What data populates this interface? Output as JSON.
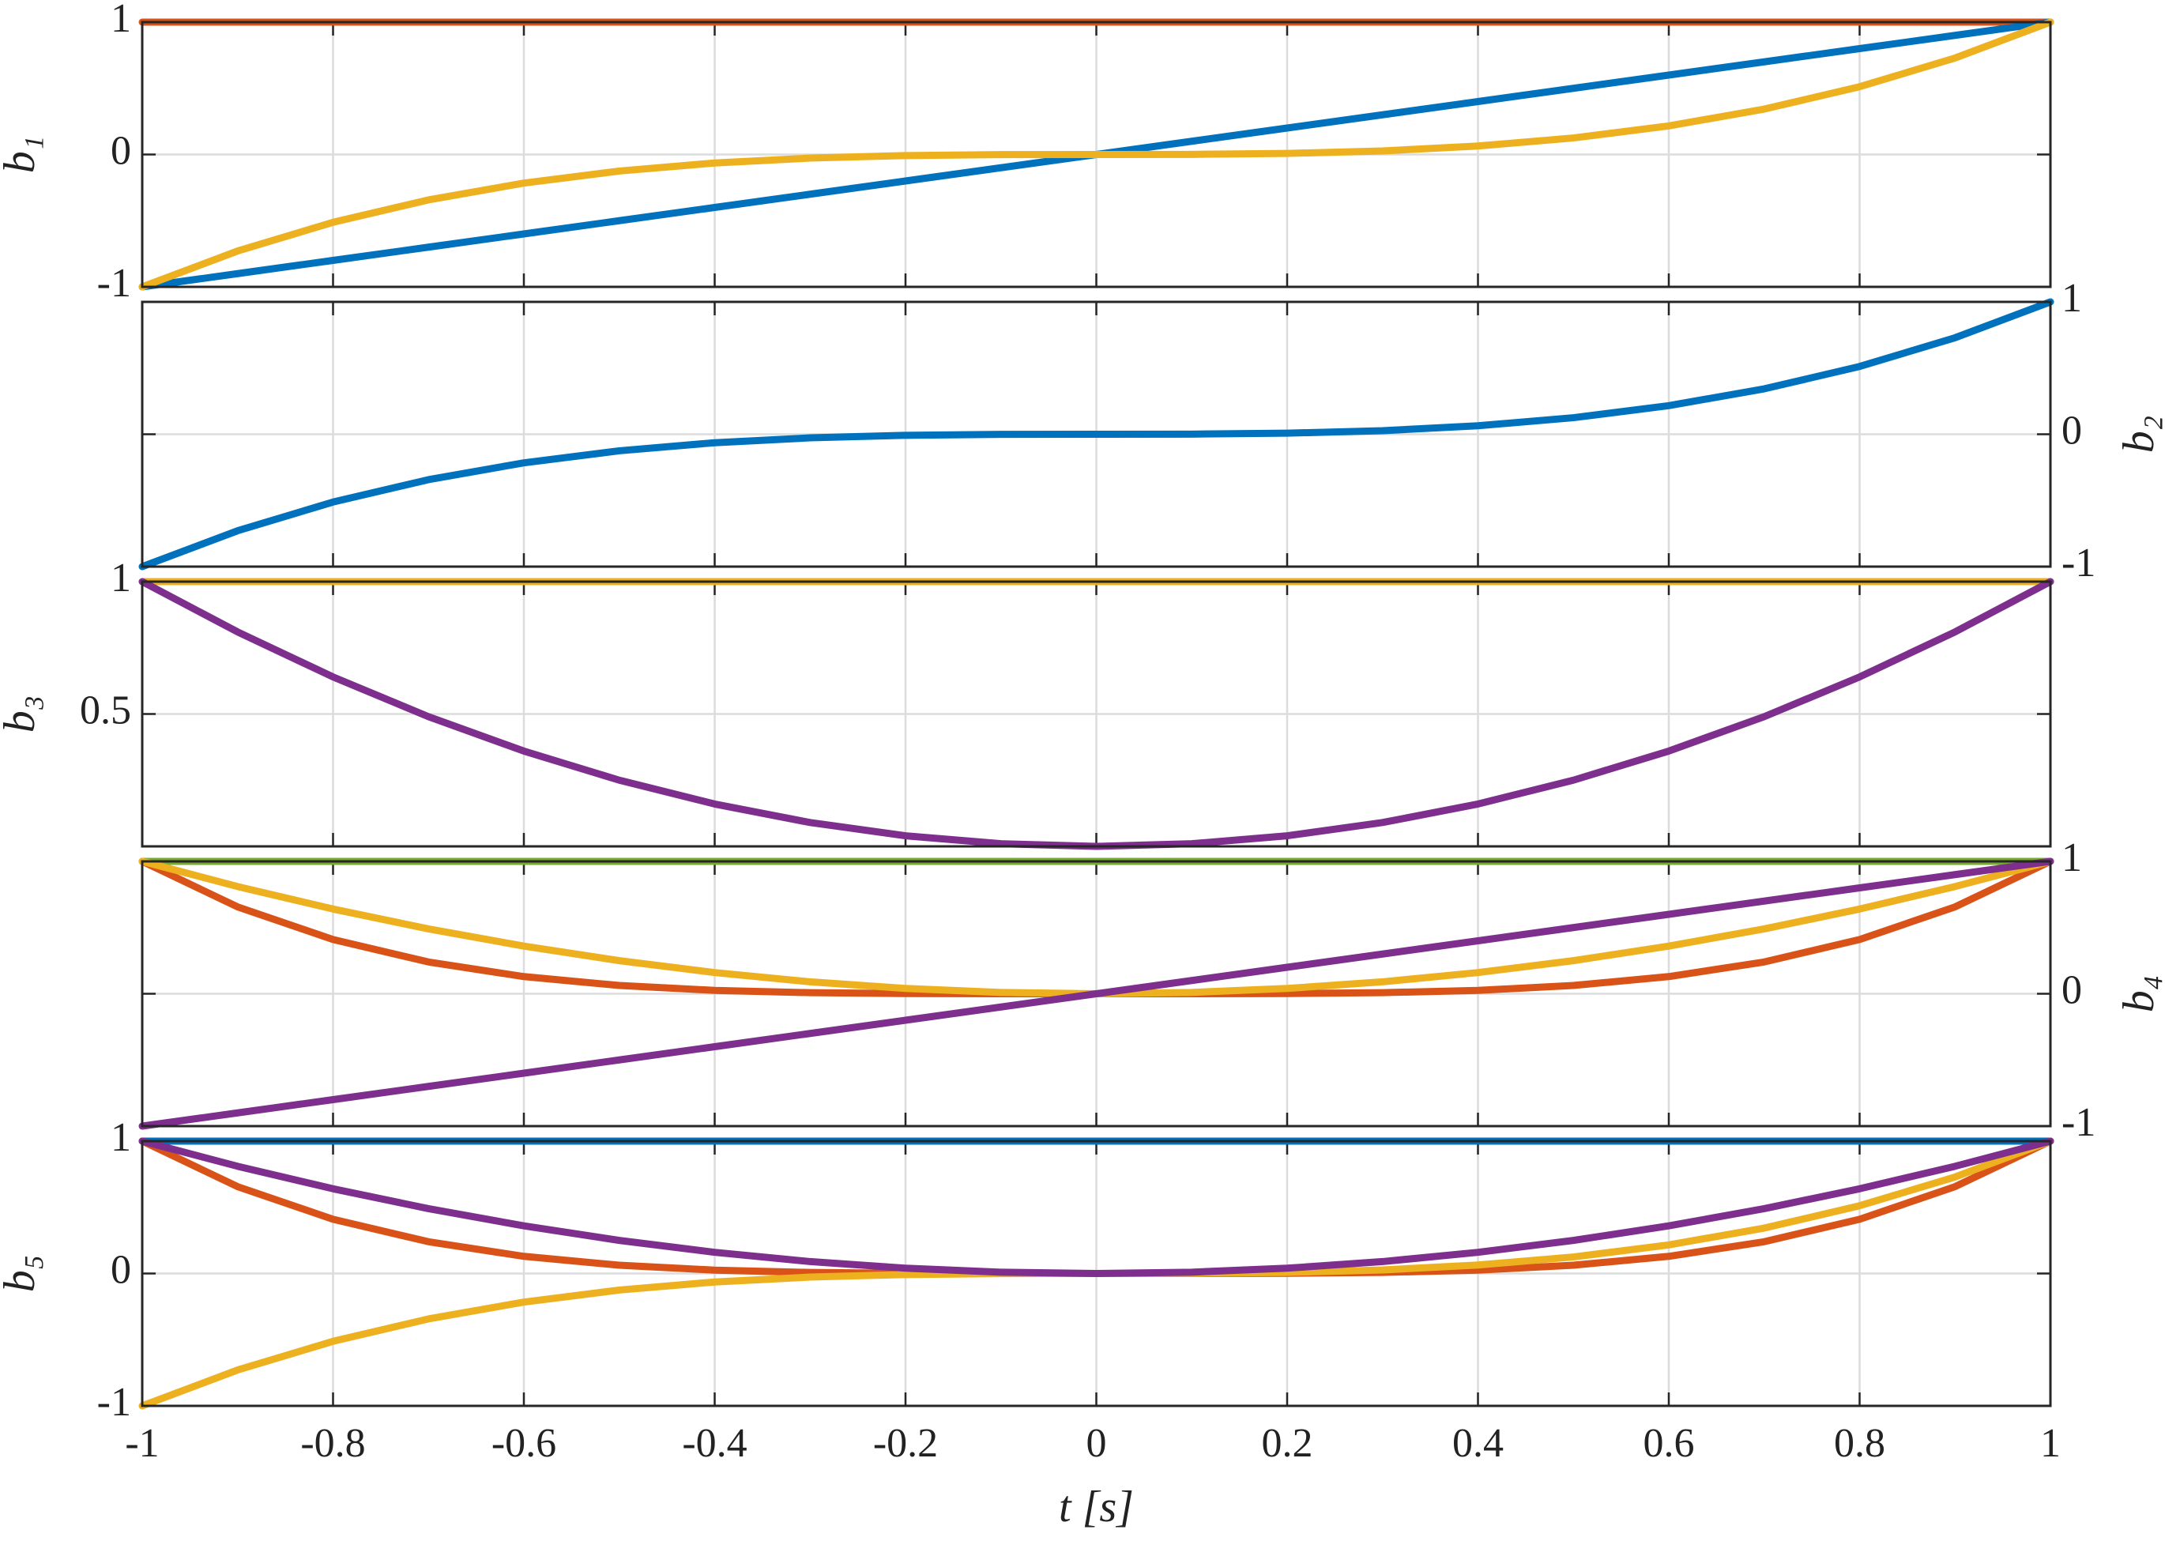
{
  "chart_data": [
    {
      "type": "line",
      "ylabel": "b₁",
      "yaxis": "left",
      "grid": true,
      "xlim": [
        -1,
        1
      ],
      "xticks": [
        -1,
        -0.8,
        -0.6,
        -0.4,
        -0.2,
        0,
        0.2,
        0.4,
        0.6,
        0.8,
        1
      ],
      "ylim": [
        -1,
        1
      ],
      "yticks": [
        -1,
        0,
        1
      ],
      "x": [
        -1,
        -0.9,
        -0.8,
        -0.7,
        -0.6,
        -0.5,
        -0.4,
        -0.3,
        -0.2,
        -0.1,
        0,
        0.1,
        0.2,
        0.3,
        0.4,
        0.5,
        0.6,
        0.7,
        0.8,
        0.9,
        1
      ],
      "series": [
        {
          "color": "#D95319",
          "values": [
            1,
            1,
            1,
            1,
            1,
            1,
            1,
            1,
            1,
            1,
            1,
            1,
            1,
            1,
            1,
            1,
            1,
            1,
            1,
            1,
            1
          ]
        },
        {
          "color": "#0072BD",
          "values": [
            -1,
            -0.9,
            -0.8,
            -0.7,
            -0.6,
            -0.5,
            -0.4,
            -0.3,
            -0.2,
            -0.1,
            0,
            0.1,
            0.2,
            0.3,
            0.4,
            0.5,
            0.6,
            0.7,
            0.8,
            0.9,
            1
          ]
        },
        {
          "color": "#EDB120",
          "values": [
            -1,
            -0.729,
            -0.512,
            -0.343,
            -0.216,
            -0.125,
            -0.064,
            -0.027,
            -0.008,
            -0.001,
            0,
            0.001,
            0.008,
            0.027,
            0.064,
            0.125,
            0.216,
            0.343,
            0.512,
            0.729,
            1
          ]
        }
      ]
    },
    {
      "type": "line",
      "ylabel": "b₂",
      "yaxis": "right",
      "grid": true,
      "xlim": [
        -1,
        1
      ],
      "xticks": [
        -1,
        -0.8,
        -0.6,
        -0.4,
        -0.2,
        0,
        0.2,
        0.4,
        0.6,
        0.8,
        1
      ],
      "ylim": [
        -1,
        1
      ],
      "yticks": [
        -1,
        0,
        1
      ],
      "x": [
        -1,
        -0.9,
        -0.8,
        -0.7,
        -0.6,
        -0.5,
        -0.4,
        -0.3,
        -0.2,
        -0.1,
        0,
        0.1,
        0.2,
        0.3,
        0.4,
        0.5,
        0.6,
        0.7,
        0.8,
        0.9,
        1
      ],
      "series": [
        {
          "color": "#0072BD",
          "values": [
            -1,
            -0.729,
            -0.512,
            -0.343,
            -0.216,
            -0.125,
            -0.064,
            -0.027,
            -0.008,
            -0.001,
            0,
            0.001,
            0.008,
            0.027,
            0.064,
            0.125,
            0.216,
            0.343,
            0.512,
            0.729,
            1
          ]
        }
      ]
    },
    {
      "type": "line",
      "ylabel": "b₃",
      "yaxis": "left",
      "grid": true,
      "xlim": [
        -1,
        1
      ],
      "xticks": [
        -1,
        -0.8,
        -0.6,
        -0.4,
        -0.2,
        0,
        0.2,
        0.4,
        0.6,
        0.8,
        1
      ],
      "ylim": [
        0,
        1
      ],
      "yticks": [
        0.5,
        1
      ],
      "x": [
        -1,
        -0.9,
        -0.8,
        -0.7,
        -0.6,
        -0.5,
        -0.4,
        -0.3,
        -0.2,
        -0.1,
        0,
        0.1,
        0.2,
        0.3,
        0.4,
        0.5,
        0.6,
        0.7,
        0.8,
        0.9,
        1
      ],
      "series": [
        {
          "color": "#EDB120",
          "values": [
            1,
            1,
            1,
            1,
            1,
            1,
            1,
            1,
            1,
            1,
            1,
            1,
            1,
            1,
            1,
            1,
            1,
            1,
            1,
            1,
            1
          ]
        },
        {
          "color": "#7E2F8E",
          "values": [
            1,
            0.81,
            0.64,
            0.49,
            0.36,
            0.25,
            0.16,
            0.09,
            0.04,
            0.01,
            0,
            0.01,
            0.04,
            0.09,
            0.16,
            0.25,
            0.36,
            0.49,
            0.64,
            0.81,
            1
          ]
        }
      ]
    },
    {
      "type": "line",
      "ylabel": "b₄",
      "yaxis": "right",
      "grid": true,
      "xlim": [
        -1,
        1
      ],
      "xticks": [
        -1,
        -0.8,
        -0.6,
        -0.4,
        -0.2,
        0,
        0.2,
        0.4,
        0.6,
        0.8,
        1
      ],
      "ylim": [
        -1,
        1
      ],
      "yticks": [
        -1,
        0,
        1
      ],
      "x": [
        -1,
        -0.9,
        -0.8,
        -0.7,
        -0.6,
        -0.5,
        -0.4,
        -0.3,
        -0.2,
        -0.1,
        0,
        0.1,
        0.2,
        0.3,
        0.4,
        0.5,
        0.6,
        0.7,
        0.8,
        0.9,
        1
      ],
      "series": [
        {
          "color": "#77AC30",
          "values": [
            1,
            1,
            1,
            1,
            1,
            1,
            1,
            1,
            1,
            1,
            1,
            1,
            1,
            1,
            1,
            1,
            1,
            1,
            1,
            1,
            1
          ]
        },
        {
          "color": "#D95319",
          "values": [
            1,
            0.6561,
            0.4096,
            0.2401,
            0.1296,
            0.0625,
            0.0256,
            0.0081,
            0.0016,
            0.0001,
            0,
            0.0001,
            0.0016,
            0.0081,
            0.0256,
            0.0625,
            0.1296,
            0.2401,
            0.4096,
            0.6561,
            1
          ]
        },
        {
          "color": "#EDB120",
          "values": [
            1,
            0.81,
            0.64,
            0.49,
            0.36,
            0.25,
            0.16,
            0.09,
            0.04,
            0.01,
            0,
            0.01,
            0.04,
            0.09,
            0.16,
            0.25,
            0.36,
            0.49,
            0.64,
            0.81,
            1
          ]
        },
        {
          "color": "#7E2F8E",
          "values": [
            -1,
            -0.9,
            -0.8,
            -0.7,
            -0.6,
            -0.5,
            -0.4,
            -0.3,
            -0.2,
            -0.1,
            0,
            0.1,
            0.2,
            0.3,
            0.4,
            0.5,
            0.6,
            0.7,
            0.8,
            0.9,
            1
          ]
        }
      ]
    },
    {
      "type": "line",
      "ylabel": "b₅",
      "yaxis": "left",
      "grid": true,
      "xlabel": "t [s]",
      "xlim": [
        -1,
        1
      ],
      "xticks": [
        -1,
        -0.8,
        -0.6,
        -0.4,
        -0.2,
        0,
        0.2,
        0.4,
        0.6,
        0.8,
        1
      ],
      "ylim": [
        -1,
        1
      ],
      "yticks": [
        -1,
        0,
        1
      ],
      "x": [
        -1,
        -0.9,
        -0.8,
        -0.7,
        -0.6,
        -0.5,
        -0.4,
        -0.3,
        -0.2,
        -0.1,
        0,
        0.1,
        0.2,
        0.3,
        0.4,
        0.5,
        0.6,
        0.7,
        0.8,
        0.9,
        1
      ],
      "series": [
        {
          "color": "#0072BD",
          "values": [
            1,
            1,
            1,
            1,
            1,
            1,
            1,
            1,
            1,
            1,
            1,
            1,
            1,
            1,
            1,
            1,
            1,
            1,
            1,
            1,
            1
          ]
        },
        {
          "color": "#D95319",
          "values": [
            1,
            0.6561,
            0.4096,
            0.2401,
            0.1296,
            0.0625,
            0.0256,
            0.0081,
            0.0016,
            0.0001,
            0,
            0.0001,
            0.0016,
            0.0081,
            0.0256,
            0.0625,
            0.1296,
            0.2401,
            0.4096,
            0.6561,
            1
          ]
        },
        {
          "color": "#EDB120",
          "values": [
            -1,
            -0.729,
            -0.512,
            -0.343,
            -0.216,
            -0.125,
            -0.064,
            -0.027,
            -0.008,
            -0.001,
            0,
            0.001,
            0.008,
            0.027,
            0.064,
            0.125,
            0.216,
            0.343,
            0.512,
            0.729,
            1
          ]
        },
        {
          "color": "#7E2F8E",
          "values": [
            1,
            0.81,
            0.64,
            0.49,
            0.36,
            0.25,
            0.16,
            0.09,
            0.04,
            0.01,
            0,
            0.01,
            0.04,
            0.09,
            0.16,
            0.25,
            0.36,
            0.49,
            0.64,
            0.81,
            1
          ]
        }
      ]
    }
  ]
}
